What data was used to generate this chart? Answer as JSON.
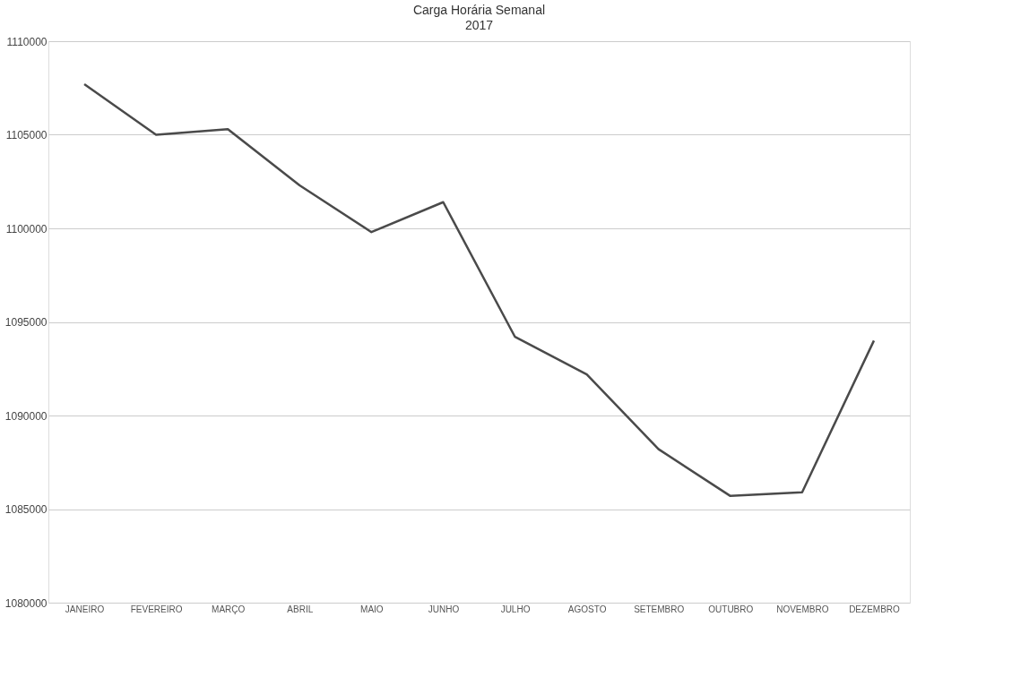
{
  "chart_data": {
    "type": "line",
    "title": "Carga Horária Semanal",
    "subtitle": "2017",
    "categories": [
      "JANEIRO",
      "FEVEREIRO",
      "MARÇO",
      "ABRIL",
      "MAIO",
      "JUNHO",
      "JULHO",
      "AGOSTO",
      "SETEMBRO",
      "OUTUBRO",
      "NOVEMBRO",
      "DEZEMBRO"
    ],
    "series": [
      {
        "color": "#4a4a4a",
        "values": [
          1107700,
          1105000,
          1105300,
          1102300,
          1099800,
          1101400,
          1094200,
          1092200,
          1088200,
          1085700,
          1085900,
          1094000
        ]
      }
    ],
    "ylim": [
      1080000,
      1110000
    ],
    "yticks": [
      1080000,
      1085000,
      1090000,
      1095000,
      1100000,
      1105000,
      1110000
    ],
    "grid": "y",
    "marker": "none",
    "line_style": "solid"
  }
}
